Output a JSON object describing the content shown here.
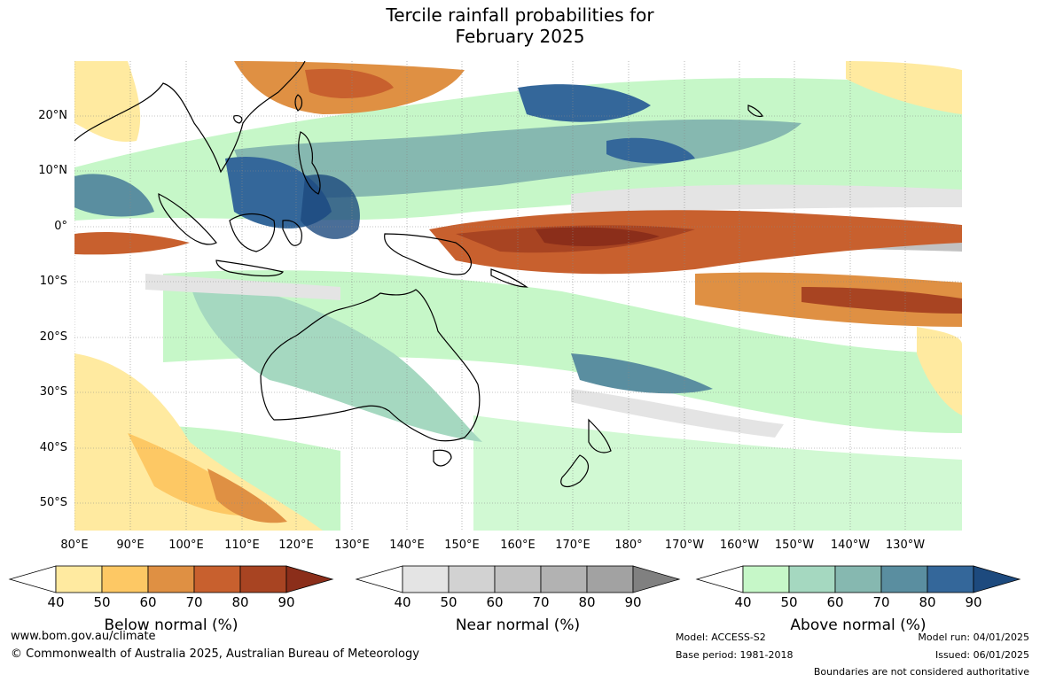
{
  "title_line1": "Tercile rainfall probabilities for",
  "title_line2": "February 2025",
  "lat_labels": [
    "20°N",
    "10°N",
    "0°",
    "10°S",
    "20°S",
    "30°S",
    "40°S",
    "50°S"
  ],
  "lon_labels": [
    "80°E",
    "90°E",
    "100°E",
    "110°E",
    "120°E",
    "130°E",
    "140°E",
    "150°E",
    "160°E",
    "170°E",
    "180°",
    "170°W",
    "160°W",
    "150°W",
    "140°W",
    "130°W"
  ],
  "colorbars": [
    {
      "title": "Below normal (%)",
      "ticks": [
        "40",
        "50",
        "60",
        "70",
        "80",
        "90"
      ],
      "colors": [
        "#ffeaa0",
        "#fdc864",
        "#df9043",
        "#c8602e",
        "#a84422",
        "#8b2e1a"
      ]
    },
    {
      "title": "Near normal (%)",
      "ticks": [
        "40",
        "50",
        "60",
        "70",
        "80",
        "90"
      ],
      "colors": [
        "#e4e4e4",
        "#d2d2d2",
        "#c2c2c2",
        "#b2b2b2",
        "#a2a2a2",
        "#808080"
      ]
    },
    {
      "title": "Above normal (%)",
      "ticks": [
        "40",
        "50",
        "60",
        "70",
        "80",
        "90"
      ],
      "colors": [
        "#c6f7c8",
        "#a5d8c0",
        "#86b8b0",
        "#5a8ea0",
        "#34679a",
        "#1d4a7e"
      ]
    }
  ],
  "footer": {
    "website": "www.bom.gov.au/climate",
    "copyright": "© Commonwealth of Australia 2025, Australian Bureau of Meteorology",
    "model": "Model: ACCESS-S2",
    "base_period": "Base period: 1981-2018",
    "model_run": "Model run: 04/01/2025",
    "issued": "Issued: 06/01/2025",
    "boundaries": "Boundaries are not considered authoritative"
  }
}
